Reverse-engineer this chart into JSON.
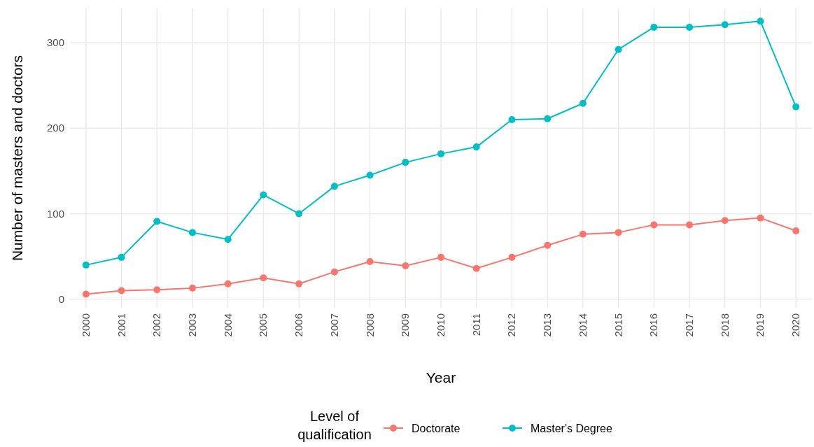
{
  "chart_data": {
    "type": "line",
    "xlabel": "Year",
    "ylabel": "Number of masters and doctors",
    "legend_title": "Level of qualification",
    "categories": [
      "2000",
      "2001",
      "2002",
      "2003",
      "2004",
      "2005",
      "2006",
      "2007",
      "2008",
      "2009",
      "2010",
      "2011",
      "2012",
      "2013",
      "2014",
      "2015",
      "2016",
      "2017",
      "2018",
      "2019",
      "2020"
    ],
    "series": [
      {
        "name": "Doctorate",
        "color": "#f8766d",
        "values": [
          6,
          10,
          11,
          13,
          18,
          25,
          18,
          32,
          44,
          39,
          49,
          36,
          49,
          63,
          76,
          78,
          87,
          87,
          92,
          95,
          80
        ]
      },
      {
        "name": "Master's Degree",
        "color": "#00bfc4",
        "values": [
          40,
          49,
          91,
          78,
          70,
          122,
          100,
          132,
          145,
          160,
          170,
          178,
          210,
          211,
          229,
          292,
          318,
          318,
          321,
          325,
          225
        ]
      }
    ],
    "ylim": [
      -10,
      340
    ],
    "yticks": [
      0,
      100,
      200,
      300
    ],
    "grid": true,
    "legend": "bottom",
    "marker": "circle",
    "line_style": "solid"
  }
}
